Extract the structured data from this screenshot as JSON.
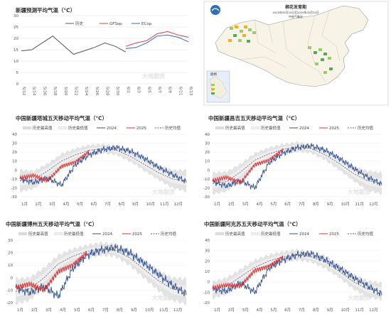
{
  "colors": {
    "hist": "#555555",
    "gfs": "#e03c3c",
    "ecop": "#3a66b3",
    "y2024": "#2f4f8f",
    "y2025": "#e03030",
    "avg": "#5a5a7a",
    "band_max": "#dcdcdc",
    "band_min": "#eeeeee"
  },
  "map": {
    "title": "棉花发育期",
    "subtitle": "2025年05月25日至2025年05月31日",
    "org": "中央气象台",
    "legend_title": "图例"
  },
  "watermark": "大地期货",
  "chart_data": [
    {
      "type": "line",
      "title": "新疆预测平均气温（℃）",
      "ylim": [
        0,
        30
      ],
      "yticks": [
        0,
        5,
        10,
        15,
        20,
        25,
        30
      ],
      "x": [
        "5/12",
        "5/14",
        "5/16",
        "5/18",
        "5/20",
        "5/22",
        "5/24",
        "5/26",
        "5/28",
        "5/30",
        "6/1",
        "6/3",
        "6/5",
        "6/7",
        "6/9",
        "6/11",
        "6/13"
      ],
      "series": [
        {
          "name": "历史",
          "values": [
            14.5,
            15,
            18,
            21,
            17,
            13,
            14.5,
            16,
            18,
            16.5,
            14,
            null,
            null,
            null,
            null,
            null,
            null
          ]
        },
        {
          "name": "GFSop",
          "values": [
            null,
            null,
            null,
            null,
            null,
            null,
            null,
            null,
            null,
            null,
            16.5,
            18,
            19,
            22,
            23,
            21.5,
            20.5
          ]
        },
        {
          "name": "ECop",
          "values": [
            null,
            null,
            null,
            null,
            null,
            null,
            null,
            null,
            null,
            null,
            15.5,
            16,
            18,
            21,
            21.5,
            20.5,
            18.5
          ]
        }
      ]
    },
    {
      "type": "line",
      "title": "中国新疆塔城五天移动平均气温（℃）",
      "ylim": [
        -30,
        40
      ],
      "yticks": [
        -30,
        -20,
        -10,
        0,
        10,
        20,
        30,
        40
      ],
      "months": [
        "1月",
        "2月",
        "3月",
        "4月",
        "5月",
        "6月",
        "7月",
        "8月",
        "9月",
        "10月",
        "11月",
        "12月"
      ],
      "legend": [
        "历史最高值",
        "历史最低值",
        "2024",
        "2025",
        "历史均值"
      ],
      "avg": [
        -12,
        -11,
        -1,
        10,
        17,
        22,
        24,
        22,
        15,
        6,
        -3,
        -10,
        -12
      ],
      "band": [
        12,
        10,
        8,
        8,
        7,
        6,
        5,
        5,
        6,
        7,
        8,
        10,
        12
      ],
      "y2024": [
        -10,
        -14,
        -9,
        -17,
        6,
        17,
        23,
        25,
        21,
        13,
        3,
        -5,
        -13
      ],
      "y2025": [
        -9,
        -6,
        -12,
        4,
        9,
        21
      ]
    },
    {
      "type": "line",
      "title": "中国新疆昌吉五天移动平均气温（℃）",
      "ylim": [
        -30,
        40
      ],
      "yticks": [
        -30,
        -20,
        -10,
        0,
        10,
        20,
        30,
        40
      ],
      "months": [
        "1月",
        "2月",
        "3月",
        "4月",
        "5月",
        "6月",
        "7月",
        "8月",
        "9月",
        "10月",
        "11月",
        "12月"
      ],
      "legend": [
        "历史最高值",
        "历史最低值",
        "2024",
        "2025",
        "历史均值"
      ],
      "avg": [
        -15,
        -13,
        -2,
        11,
        18,
        23,
        26,
        24,
        17,
        7,
        -4,
        -12,
        -15
      ],
      "band": [
        12,
        11,
        9,
        8,
        7,
        6,
        5,
        5,
        6,
        7,
        8,
        11,
        12
      ],
      "y2024": [
        -13,
        -18,
        -12,
        -20,
        8,
        19,
        25,
        27,
        22,
        13,
        2,
        -8,
        -16
      ],
      "y2025": [
        -12,
        -8,
        -14,
        6,
        11,
        23
      ]
    },
    {
      "type": "line",
      "title": "中国新疆博州五天移动平均气温（℃）",
      "ylim": [
        -20,
        30
      ],
      "yticks": [
        -20,
        -10,
        0,
        10,
        20,
        30
      ],
      "months": [
        "1月",
        "2月",
        "3月",
        "4月",
        "5月",
        "6月",
        "7月",
        "8月",
        "9月",
        "10月",
        "11月",
        "12月"
      ],
      "legend": [
        "历史最高值",
        "历史最低值",
        "2024",
        "2025",
        "历史均值"
      ],
      "avg": [
        -11,
        -9,
        0,
        11,
        17,
        21,
        23,
        22,
        16,
        7,
        -2,
        -9,
        -11
      ],
      "band": [
        10,
        9,
        8,
        7,
        6,
        5,
        5,
        5,
        6,
        7,
        8,
        9,
        10
      ],
      "y2024": [
        -8,
        -12,
        -7,
        -15,
        7,
        18,
        22,
        24,
        20,
        12,
        3,
        -6,
        -13
      ],
      "y2025": [
        -8,
        -5,
        -10,
        5,
        10,
        20
      ]
    },
    {
      "type": "line",
      "title": "中国新疆阿克苏五天移动平均气温（℃）",
      "ylim": [
        -20,
        40
      ],
      "yticks": [
        -20,
        -10,
        0,
        10,
        20,
        30,
        40
      ],
      "months": [
        "1月",
        "2月",
        "3月",
        "4月",
        "5月",
        "6月",
        "7月",
        "8月",
        "9月",
        "10月",
        "11月",
        "12月"
      ],
      "legend": [
        "历史最高值",
        "历史最低值",
        "2024",
        "2025",
        "历史均值"
      ],
      "avg": [
        -8,
        -4,
        5,
        14,
        20,
        24,
        26,
        24,
        19,
        10,
        0,
        -7,
        -9
      ],
      "band": [
        8,
        8,
        7,
        7,
        6,
        5,
        5,
        5,
        6,
        6,
        7,
        8,
        8
      ],
      "y2024": [
        -7,
        -9,
        -1,
        -10,
        13,
        21,
        26,
        27,
        21,
        13,
        4,
        -4,
        -12
      ],
      "y2025": [
        -6,
        -3,
        -4,
        11,
        15,
        24
      ]
    }
  ]
}
